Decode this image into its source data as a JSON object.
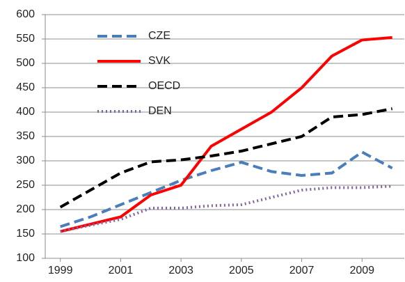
{
  "chart_data": {
    "type": "line",
    "x": [
      1999,
      2000,
      2001,
      2002,
      2003,
      2004,
      2005,
      2006,
      2007,
      2008,
      2009,
      2010
    ],
    "series": [
      {
        "name": "CZE",
        "color": "#4a7ebb",
        "dash": "dashed",
        "values": [
          165,
          185,
          210,
          235,
          260,
          280,
          297,
          278,
          270,
          275,
          318,
          285
        ]
      },
      {
        "name": "SVK",
        "color": "#ff0000",
        "dash": "solid",
        "values": [
          155,
          170,
          185,
          230,
          250,
          330,
          365,
          400,
          450,
          515,
          548,
          553
        ]
      },
      {
        "name": "OECD",
        "color": "#000000",
        "dash": "dashed",
        "values": [
          205,
          240,
          275,
          298,
          302,
          310,
          320,
          335,
          350,
          390,
          395,
          407
        ]
      },
      {
        "name": "DEN",
        "color": "#8064a2",
        "dash": "dotted",
        "values": [
          155,
          168,
          180,
          203,
          203,
          208,
          210,
          225,
          240,
          245,
          245,
          248
        ]
      }
    ],
    "xlim": [
      1998.5,
      2010.4
    ],
    "xticks": [
      1999,
      2001,
      2003,
      2005,
      2007,
      2009
    ],
    "ylim": [
      100,
      600
    ],
    "yticks": [
      100,
      150,
      200,
      250,
      300,
      350,
      400,
      450,
      500,
      550,
      600
    ],
    "grid": true,
    "legend": "upper-left"
  }
}
